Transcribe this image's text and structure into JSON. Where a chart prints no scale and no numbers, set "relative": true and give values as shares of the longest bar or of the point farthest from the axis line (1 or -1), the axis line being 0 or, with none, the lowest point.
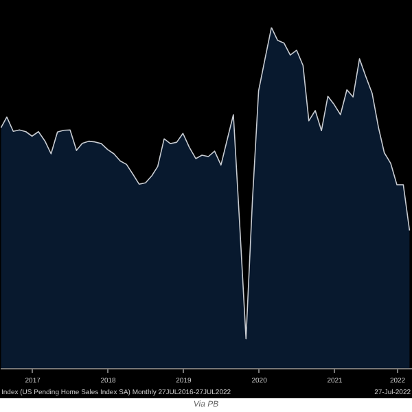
{
  "chart_data": {
    "type": "area",
    "relative": true,
    "color": "#0b2341",
    "x": [
      "2017-02",
      "2017-03",
      "2017-04",
      "2017-05",
      "2017-06",
      "2017-07",
      "2017-08",
      "2017-09",
      "2017-10",
      "2017-11",
      "2017-12",
      "2018-01",
      "2018-02",
      "2018-03",
      "2018-04",
      "2018-05",
      "2018-06",
      "2018-07",
      "2018-08",
      "2018-09",
      "2018-10",
      "2018-11",
      "2018-12",
      "2019-01",
      "2019-02",
      "2019-03",
      "2019-04",
      "2019-05",
      "2019-06",
      "2019-07",
      "2019-08",
      "2019-09",
      "2019-10",
      "2019-11",
      "2019-12",
      "2020-01",
      "2020-02",
      "2020-03",
      "2020-04",
      "2020-05",
      "2020-06",
      "2020-07",
      "2020-08",
      "2020-09",
      "2020-10",
      "2020-11",
      "2020-12",
      "2021-01",
      "2021-02",
      "2021-03",
      "2021-04",
      "2021-05",
      "2021-06",
      "2021-07",
      "2021-08",
      "2021-09",
      "2021-10",
      "2021-11",
      "2021-12",
      "2022-01",
      "2022-02",
      "2022-03",
      "2022-04",
      "2022-05",
      "2022-06",
      "2022-07"
    ],
    "values": [
      0.706,
      0.737,
      0.695,
      0.699,
      0.694,
      0.681,
      0.694,
      0.667,
      0.629,
      0.693,
      0.698,
      0.699,
      0.639,
      0.66,
      0.666,
      0.664,
      0.659,
      0.642,
      0.629,
      0.608,
      0.598,
      0.569,
      0.54,
      0.544,
      0.565,
      0.592,
      0.673,
      0.659,
      0.663,
      0.689,
      0.648,
      0.615,
      0.625,
      0.621,
      0.637,
      0.596,
      0.673,
      0.744,
      0.416,
      0.086,
      0.491,
      0.814,
      0.908,
      1,
      0.962,
      0.954,
      0.919,
      0.933,
      0.888,
      0.726,
      0.756,
      0.697,
      0.798,
      0.774,
      0.744,
      0.817,
      0.796,
      0.908,
      0.857,
      0.807,
      0.706,
      0.632,
      0.601,
      0.538,
      0.538,
      0.404
    ],
    "xlim": [
      "2017-01-27",
      "2022-07-13"
    ],
    "xticks": [
      {
        "value": "2017-07-01",
        "label": "2017"
      },
      {
        "value": "2018-07-01",
        "label": "2018"
      },
      {
        "value": "2019-07-01",
        "label": "2019"
      },
      {
        "value": "2020-07-01",
        "label": "2020"
      },
      {
        "value": "2021-07-01",
        "label": "2021"
      },
      {
        "value": "2022-05-01",
        "label": "2022"
      }
    ],
    "annotations": [
      "Index (US Pending Home Sales Index SA)  Monthly 27JUL2016-27JUL2022",
      "27-Jul-2022",
      "Via PB"
    ]
  }
}
